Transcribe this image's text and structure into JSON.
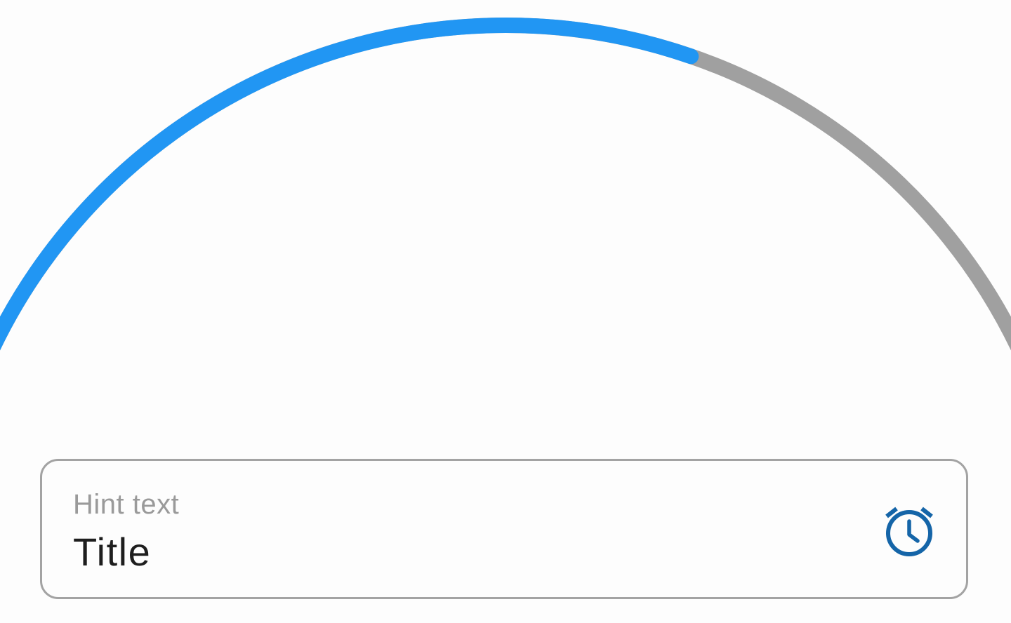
{
  "progress": {
    "value": 0.64,
    "colors": {
      "active": "#2196f3",
      "track": "#a0a0a0"
    }
  },
  "text_field": {
    "hint": "Hint text",
    "value": "Title",
    "trailing_icon": "alarm-clock-icon",
    "colors": {
      "border": "#a3a3a3",
      "hint": "#9a9a9a",
      "value": "#1e1e1e",
      "icon": "#1565a8"
    }
  }
}
